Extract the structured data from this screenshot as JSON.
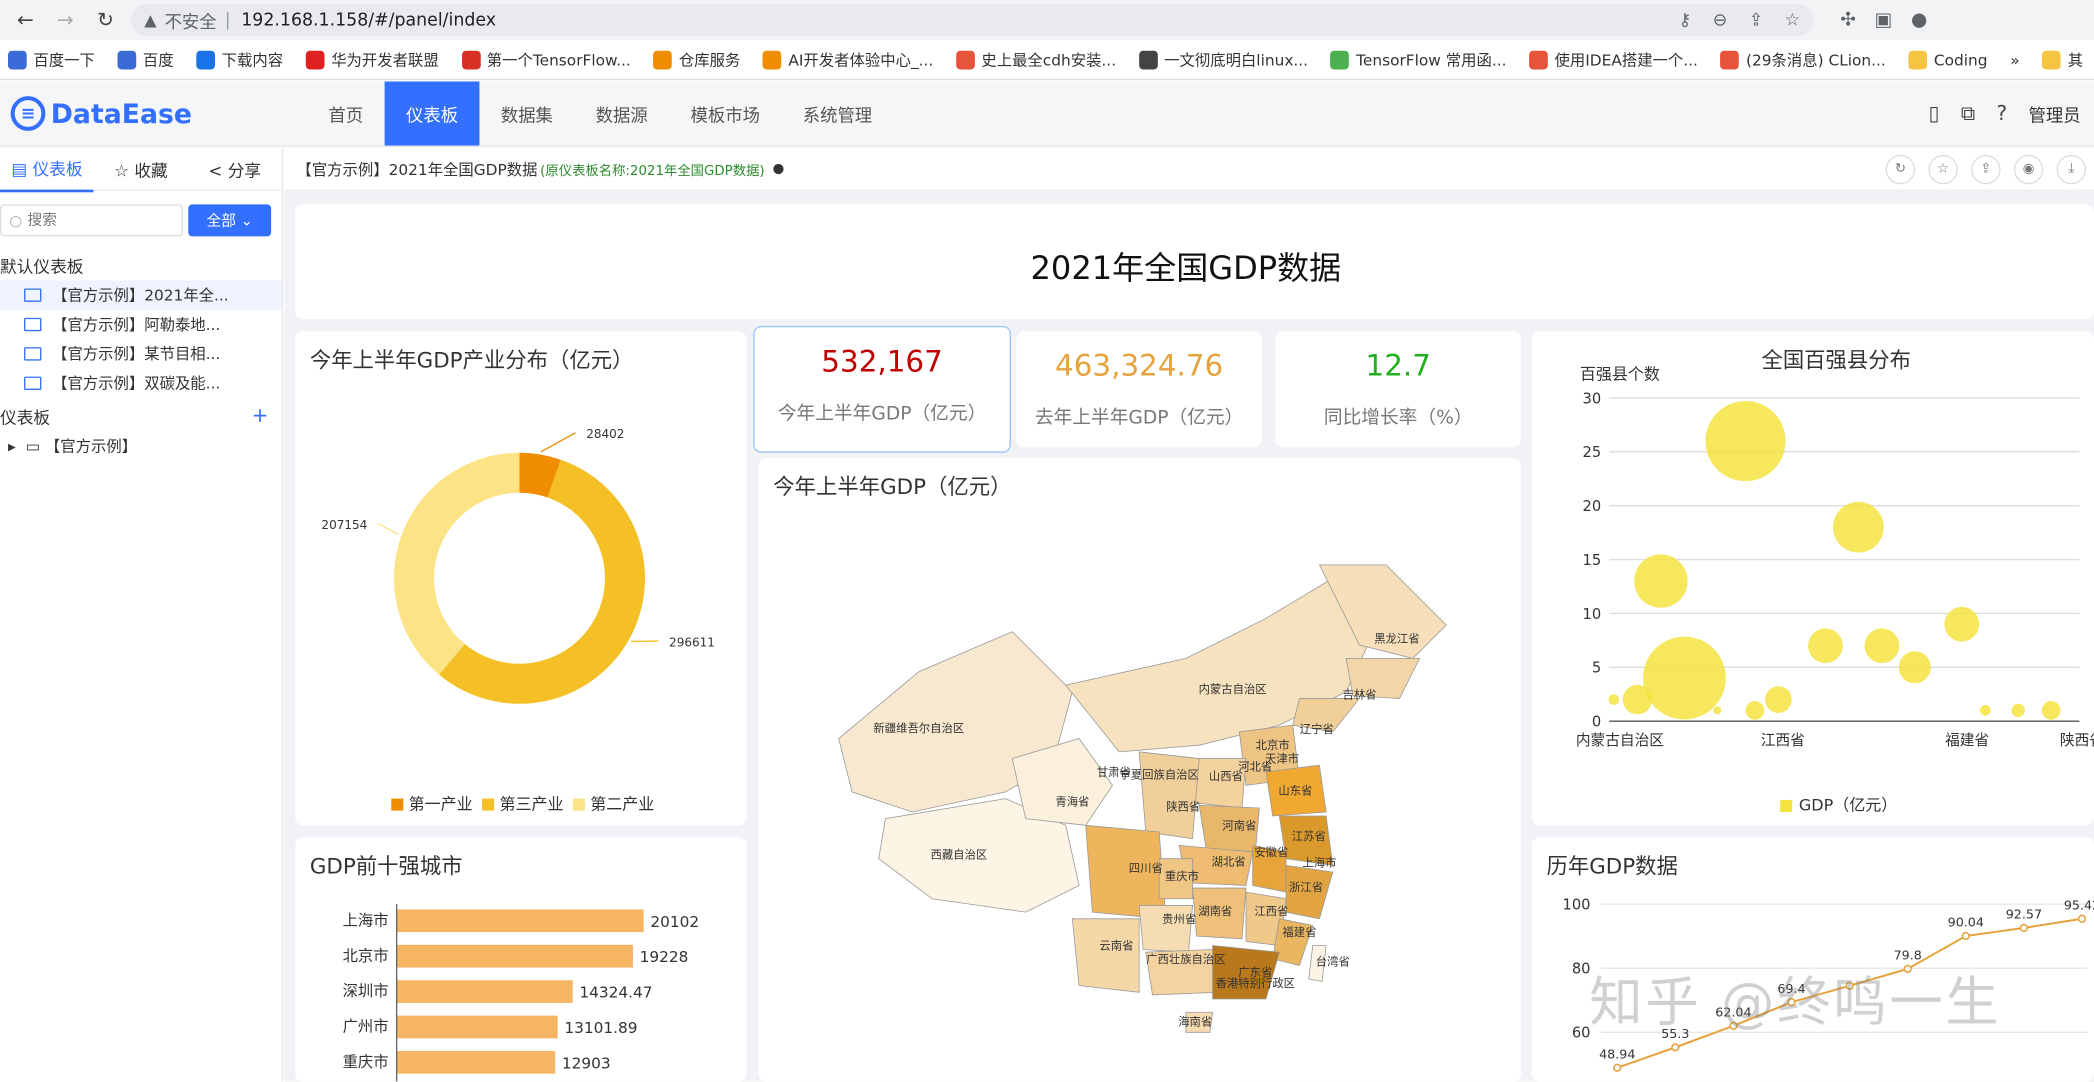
{
  "browser": {
    "security_label": "不安全",
    "url": "192.168.1.158/#/panel/index",
    "bookmarks": [
      "百度一下",
      "百度",
      "下载内容",
      "华为开发者联盟",
      "第一个TensorFlow...",
      "仓库服务",
      "AI开发者体验中心_...",
      "史上最全cdh安装...",
      "一文彻底明白linux...",
      "TensorFlow 常用函...",
      "使用IDEA搭建一个...",
      "(29条消息) CLion...",
      "Coding",
      "»",
      "其"
    ]
  },
  "app": {
    "logo_text": "DataEase",
    "nav": [
      "首页",
      "仪表板",
      "数据集",
      "数据源",
      "模板市场",
      "系统管理"
    ],
    "user": "管理员"
  },
  "sidebar": {
    "tabs": [
      "仪表板",
      "收藏",
      "分享"
    ],
    "search_placeholder": "搜索",
    "filter_label": "全部",
    "default_section": "默认仪表板",
    "default_items": [
      "【官方示例】2021年全...",
      "【官方示例】阿勒泰地...",
      "【官方示例】某节目相...",
      "【官方示例】双碳及能..."
    ],
    "panel_section": "仪表板",
    "folder": "【官方示例】"
  },
  "panel_bar": {
    "title": "【官方示例】2021年全国GDP数据",
    "subtitle": "(原仪表板名称:2021年全国GDP数据)"
  },
  "dashboard": {
    "title": "2021年全国GDP数据",
    "kpis": [
      {
        "value": "532,167",
        "label": "今年上半年GDP（亿元）",
        "color": "#c00000"
      },
      {
        "value": "463,324.76",
        "label": "去年上半年GDP（亿元）",
        "color": "#e6a23c"
      },
      {
        "value": "12.7",
        "label": "同比增长率（%）",
        "color": "#22b022"
      }
    ],
    "donut": {
      "title": "今年上半年GDP产业分布（亿元）",
      "slices": [
        {
          "name": "第一产业",
          "value": 28402,
          "color": "#f08c00"
        },
        {
          "name": "第三产业",
          "value": 296611,
          "color": "#f4c025"
        },
        {
          "name": "第二产业",
          "value": 207154,
          "color": "#fbe386"
        }
      ]
    },
    "map": {
      "title": "今年上半年GDP（亿元）",
      "labels": [
        "黑龙江省",
        "吉林省",
        "辽宁省",
        "内蒙古自治区",
        "新疆维吾尔自治区",
        "北京市",
        "天津市",
        "河北省",
        "山西省",
        "宁夏回族自治区",
        "甘肃省",
        "青海省",
        "陕西省",
        "山东省",
        "河南省",
        "江苏省",
        "安徽省",
        "上海市",
        "西藏自治区",
        "四川省",
        "湖北省",
        "浙江省",
        "重庆市",
        "湖南省",
        "江西省",
        "贵州省",
        "福建省",
        "云南省",
        "广西壮族自治区",
        "广东省",
        "台湾省",
        "香港特别行政区",
        "海南省"
      ]
    },
    "bubble": {
      "title": "全国百强县分布",
      "ylabel": "百强县个数",
      "legend": "GDP（亿元）",
      "yticks": [
        "30",
        "25",
        "20",
        "15",
        "10",
        "5",
        "0"
      ],
      "xticks": [
        "内蒙古自治区",
        "江西省",
        "福建省",
        "陕西省"
      ]
    },
    "top_cities": {
      "title": "GDP前十强城市",
      "cities": [
        "上海市",
        "北京市",
        "深圳市",
        "广州市",
        "重庆市"
      ],
      "values": [
        "20102",
        "19228",
        "14324.47",
        "13101.89",
        "12903"
      ]
    },
    "history": {
      "title": "历年GDP数据",
      "yticks": [
        "100",
        "80",
        "60"
      ],
      "point_labels": [
        "48.94",
        "55.3",
        "62.04",
        "69.4",
        "79.8",
        "90.04",
        "92.57",
        "95.42"
      ]
    }
  },
  "chart_data": [
    {
      "type": "pie",
      "title": "今年上半年GDP产业分布（亿元）",
      "categories": [
        "第一产业",
        "第三产业",
        "第二产业"
      ],
      "values": [
        28402,
        296611,
        207154
      ],
      "legend": "bottom"
    },
    {
      "type": "scatter",
      "title": "全国百强县分布",
      "ylabel": "百强县个数",
      "ylim": [
        0,
        30
      ],
      "series": [
        {
          "name": "GDP（亿元）",
          "points": [
            {
              "x": 0.1,
              "y": 2,
              "size": 8
            },
            {
              "x": 0.6,
              "y": 2,
              "size": 22
            },
            {
              "x": 1.1,
              "y": 13,
              "size": 40
            },
            {
              "x": 1.6,
              "y": 4,
              "size": 62
            },
            {
              "x": 2.3,
              "y": 1,
              "size": 6
            },
            {
              "x": 2.9,
              "y": 26,
              "size": 60
            },
            {
              "x": 3.1,
              "y": 1,
              "size": 14
            },
            {
              "x": 3.6,
              "y": 2,
              "size": 20
            },
            {
              "x": 4.6,
              "y": 7,
              "size": 26
            },
            {
              "x": 5.3,
              "y": 18,
              "size": 38
            },
            {
              "x": 5.8,
              "y": 7,
              "size": 26
            },
            {
              "x": 6.5,
              "y": 5,
              "size": 24
            },
            {
              "x": 7.5,
              "y": 9,
              "size": 26
            },
            {
              "x": 8.0,
              "y": 1,
              "size": 8
            },
            {
              "x": 8.7,
              "y": 1,
              "size": 10
            },
            {
              "x": 9.4,
              "y": 1,
              "size": 14
            }
          ]
        }
      ],
      "xticks": [
        "内蒙古自治区",
        "江西省",
        "福建省",
        "陕西省"
      ],
      "legend": "bottom"
    },
    {
      "type": "bar",
      "title": "GDP前十强城市",
      "categories": [
        "上海市",
        "北京市",
        "深圳市",
        "广州市",
        "重庆市"
      ],
      "values": [
        20102,
        19228,
        14324.47,
        13101.89,
        12903
      ],
      "orientation": "horizontal"
    },
    {
      "type": "line",
      "title": "历年GDP数据",
      "values": [
        48.94,
        55.3,
        62.04,
        69.4,
        74.5,
        79.8,
        90.04,
        92.57,
        95.42
      ],
      "ylim": [
        50,
        100
      ]
    }
  ],
  "watermark": "知乎 @终鸣一生"
}
